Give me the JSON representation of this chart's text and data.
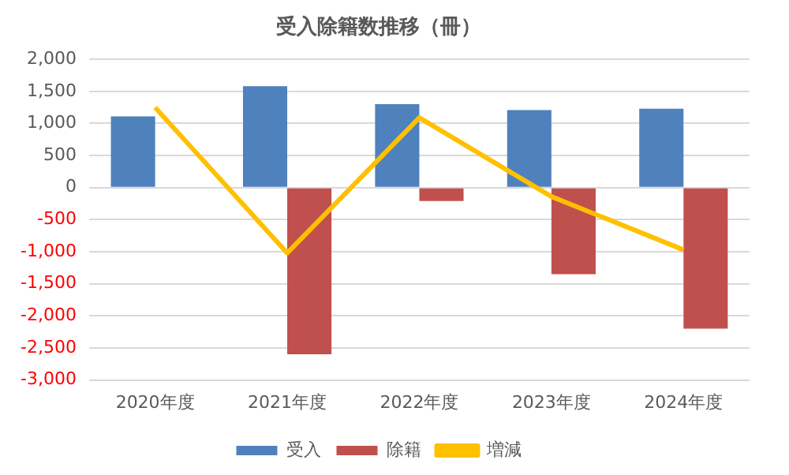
{
  "chart_data": {
    "type": "bar",
    "title": "受入除籍数推移（冊）",
    "categories": [
      "2020年度",
      "2021年度",
      "2022年度",
      "2023年度",
      "2024年度"
    ],
    "series": [
      {
        "name": "受入",
        "color": "#4f81bd",
        "values": [
          1110,
          1580,
          1300,
          1210,
          1230
        ]
      },
      {
        "name": "除籍",
        "color": "#c0504d",
        "values": [
          null,
          -2600,
          -210,
          -1350,
          -2200
        ]
      },
      {
        "name": "増減",
        "type": "line",
        "color": "#ffc000",
        "values": [
          1250,
          -1020,
          1090,
          -140,
          -970
        ]
      }
    ],
    "ylim": [
      -3000,
      2000
    ],
    "yticks": [
      {
        "value": -3000,
        "label": "-3,000"
      },
      {
        "value": -2500,
        "label": "-2,500"
      },
      {
        "value": -2000,
        "label": "-2,000"
      },
      {
        "value": -1500,
        "label": "-1,500"
      },
      {
        "value": -1000,
        "label": "-1,000"
      },
      -500,
      0,
      500,
      {
        "value": 1000,
        "label": "1,000"
      },
      {
        "value": 1500,
        "label": "1,500"
      },
      {
        "value": 2000,
        "label": "2,000"
      }
    ],
    "grid": "y",
    "legend": "bottom",
    "marker": "none"
  }
}
